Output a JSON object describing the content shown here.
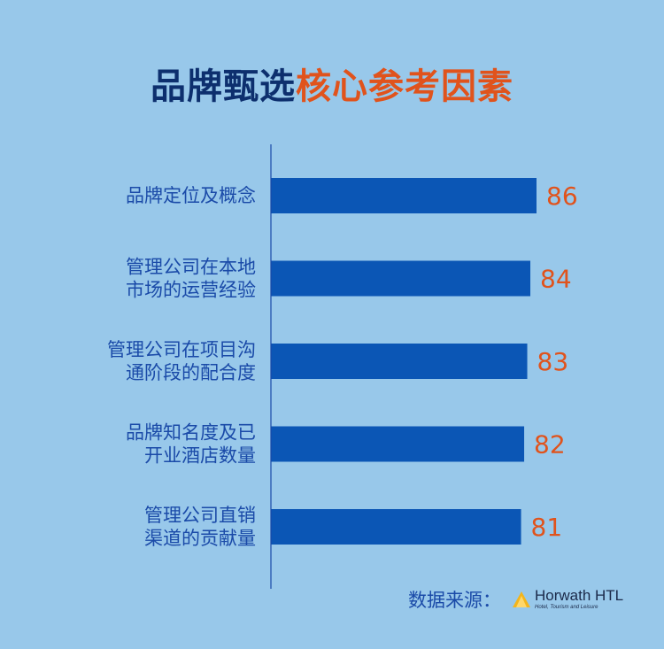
{
  "title": {
    "part1": "品牌甄选",
    "part2": "核心参考因素"
  },
  "chart_data": {
    "type": "bar",
    "orientation": "horizontal",
    "categories": [
      [
        "品牌定位及概念"
      ],
      [
        "管理公司在本地",
        "市场的运营经验"
      ],
      [
        "管理公司在项目沟",
        "通阶段的配合度"
      ],
      [
        "品牌知名度及已",
        "开业酒店数量"
      ],
      [
        "管理公司直销",
        "渠道的贡献量"
      ]
    ],
    "values": [
      86,
      84,
      83,
      82,
      81
    ],
    "colors": {
      "bar": "#0b56b5",
      "value_label": "#e0531c",
      "category_label": "#1a4aa8",
      "axis": "#1a4aa8"
    }
  },
  "source": {
    "label": "数据来源：",
    "logo_name": "Horwath HTL",
    "logo_sub": "Hotel, Tourism and Leisure"
  }
}
